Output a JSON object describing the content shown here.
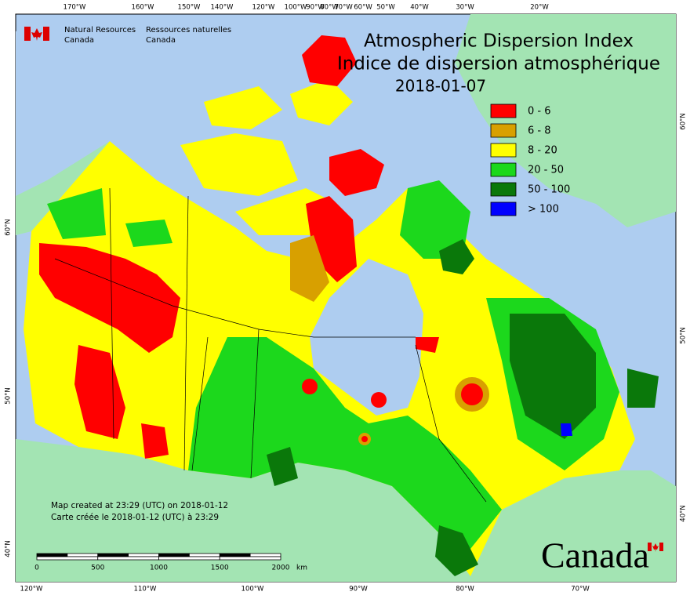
{
  "header": {
    "org_en": [
      "Natural Resources",
      "Canada"
    ],
    "org_fr": [
      "Ressources naturelles",
      "Canada"
    ]
  },
  "title": [
    "Atmospheric Dispersion Index",
    "Indice de dispersion atmosphérique"
  ],
  "date": "2018-01-07",
  "legend": [
    {
      "label": "0 - 6",
      "color": "#ff0000"
    },
    {
      "label": "6 - 8",
      "color": "#d8a000"
    },
    {
      "label": "8 - 20",
      "color": "#ffff00"
    },
    {
      "label": "20 - 50",
      "color": "#1cd81c"
    },
    {
      "label": "50 - 100",
      "color": "#0a780a"
    },
    {
      "label": "> 100",
      "color": "#0000ff"
    }
  ],
  "top_labels": [
    "170°W",
    "160°W",
    "150°W",
    "140°W",
    "120°W",
    "100°W",
    "90°W",
    "80°W",
    "70°W",
    "60°W",
    "50°W",
    "40°W",
    "30°W",
    "20°W"
  ],
  "bottom_labels": [
    "120°W",
    "110°W",
    "100°W",
    "90°W",
    "80°W",
    "70°W"
  ],
  "left_labels": [
    "60°N",
    "50°N",
    "40°N"
  ],
  "right_labels": [
    "60°N",
    "50°N",
    "40°N"
  ],
  "credits": [
    "Map created at 23:29 (UTC) on 2018-01-12",
    "Carte créée le 2018-01-12 (UTC) à 23:29"
  ],
  "scale": {
    "ticks": [
      "0",
      "500",
      "1000",
      "1500",
      "2000"
    ],
    "unit": "km"
  },
  "wordmark": "Canada"
}
